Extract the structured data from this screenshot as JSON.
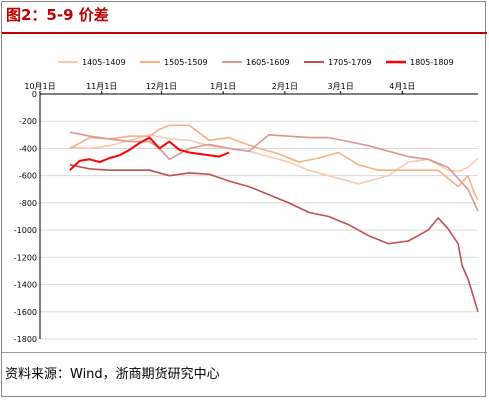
{
  "title": "图2：5-9 价差",
  "source": "资料来源：Wind，浙商期货研究中心",
  "chart_data": {
    "type": "line",
    "title": "图2：5-9 价差",
    "xlabel": "",
    "ylabel": "",
    "ylim": [
      -1800,
      0
    ],
    "yticks": [
      0,
      -200,
      -400,
      -600,
      -800,
      -1000,
      -1200,
      -1400,
      -1600,
      -1800
    ],
    "xticks": [
      "10月1日",
      "11月1日",
      "12月1日",
      "1月1日",
      "2月1日",
      "3月1日",
      "4月1日"
    ],
    "xlim": [
      0,
      220
    ],
    "xtick_days": [
      0,
      31,
      61,
      92,
      123,
      151,
      182
    ],
    "grid": true,
    "legend_position": "top",
    "series": [
      {
        "name": "1405-1409",
        "color": "#f8cbad",
        "x": [
          15,
          25,
          35,
          45,
          55,
          65,
          75,
          85,
          95,
          105,
          115,
          125,
          135,
          145,
          160,
          175,
          185,
          195,
          205,
          210,
          215,
          220
        ],
        "y": [
          -390,
          -400,
          -380,
          -340,
          -300,
          -330,
          -340,
          -380,
          -400,
          -420,
          -460,
          -500,
          -560,
          -600,
          -660,
          -600,
          -500,
          -480,
          -560,
          -570,
          -540,
          -470
        ]
      },
      {
        "name": "1505-1509",
        "color": "#f4b183",
        "x": [
          15,
          25,
          35,
          45,
          55,
          60,
          65,
          75,
          85,
          95,
          100,
          110,
          120,
          130,
          140,
          150,
          160,
          170,
          180,
          190,
          200,
          210,
          215,
          218,
          220
        ],
        "y": [
          -400,
          -320,
          -330,
          -310,
          -310,
          -260,
          -230,
          -230,
          -340,
          -320,
          -350,
          -400,
          -440,
          -500,
          -470,
          -430,
          -520,
          -560,
          -560,
          -560,
          -560,
          -680,
          -600,
          -720,
          -780
        ]
      },
      {
        "name": "1605-1609",
        "color": "#d99694",
        "x": [
          15,
          25,
          35,
          45,
          55,
          60,
          65,
          75,
          85,
          95,
          105,
          115,
          125,
          135,
          145,
          155,
          165,
          175,
          185,
          195,
          205,
          215,
          220
        ],
        "y": [
          -280,
          -310,
          -330,
          -350,
          -350,
          -400,
          -480,
          -400,
          -370,
          -400,
          -420,
          -300,
          -310,
          -320,
          -320,
          -350,
          -380,
          -420,
          -460,
          -480,
          -540,
          -700,
          -860
        ]
      },
      {
        "name": "1705-1709",
        "color": "#c0504d",
        "x": [
          15,
          25,
          35,
          45,
          55,
          65,
          75,
          85,
          95,
          105,
          115,
          125,
          135,
          145,
          155,
          165,
          175,
          185,
          190,
          195,
          200,
          205,
          210,
          212,
          215,
          218,
          220
        ],
        "y": [
          -520,
          -550,
          -560,
          -560,
          -560,
          -600,
          -580,
          -590,
          -640,
          -680,
          -740,
          -800,
          -870,
          -900,
          -960,
          -1040,
          -1100,
          -1080,
          -1040,
          -1000,
          -910,
          -990,
          -1100,
          -1260,
          -1360,
          -1500,
          -1600
        ]
      },
      {
        "name": "1805-1809",
        "color": "#ff0000",
        "x": [
          15,
          20,
          25,
          30,
          35,
          40,
          45,
          50,
          55,
          60,
          65,
          70,
          75,
          80,
          85,
          90,
          95
        ],
        "y": [
          -560,
          -490,
          -480,
          -500,
          -470,
          -450,
          -410,
          -360,
          -320,
          -400,
          -350,
          -410,
          -430,
          -440,
          -450,
          -460,
          -430
        ]
      }
    ]
  }
}
